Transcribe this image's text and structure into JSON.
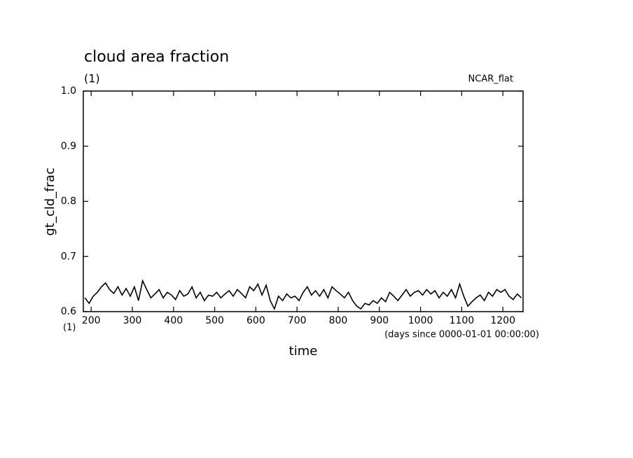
{
  "chart_data": {
    "type": "line",
    "title": "cloud area fraction",
    "subtitle": "(1)",
    "annotation": "NCAR_flat",
    "ylabel": "gt_cld_frac",
    "xlabel": "time",
    "xunits": "(days since 0000-01-01 00:00:00)",
    "xunits_prefix": "(1)",
    "xlim": [
      181,
      1249
    ],
    "ylim": [
      0.6,
      1.0
    ],
    "xticks": [
      200,
      300,
      400,
      500,
      600,
      700,
      800,
      900,
      1000,
      1100,
      1200
    ],
    "yticks": [
      0.6,
      0.7,
      0.8,
      0.9,
      {
        "value": 1,
        "label": "1.0"
      }
    ],
    "x": [
      185,
      195,
      205,
      215,
      225,
      235,
      245,
      255,
      265,
      275,
      285,
      295,
      305,
      315,
      325,
      335,
      345,
      355,
      365,
      375,
      385,
      395,
      405,
      415,
      425,
      435,
      445,
      455,
      465,
      475,
      485,
      495,
      505,
      515,
      525,
      535,
      545,
      555,
      565,
      575,
      585,
      595,
      605,
      615,
      625,
      635,
      645,
      655,
      665,
      675,
      685,
      695,
      705,
      715,
      725,
      735,
      745,
      755,
      765,
      775,
      785,
      795,
      805,
      815,
      825,
      835,
      845,
      855,
      865,
      875,
      885,
      895,
      905,
      915,
      925,
      935,
      945,
      955,
      965,
      975,
      985,
      995,
      1005,
      1015,
      1025,
      1035,
      1045,
      1055,
      1065,
      1075,
      1085,
      1095,
      1105,
      1115,
      1125,
      1135,
      1145,
      1155,
      1165,
      1175,
      1185,
      1195,
      1205,
      1215,
      1225,
      1235,
      1245
    ],
    "series": [
      {
        "color": "#000000",
        "values": [
          0.625,
          0.615,
          0.628,
          0.635,
          0.645,
          0.652,
          0.64,
          0.633,
          0.645,
          0.63,
          0.642,
          0.628,
          0.645,
          0.62,
          0.656,
          0.64,
          0.625,
          0.632,
          0.64,
          0.625,
          0.635,
          0.63,
          0.622,
          0.638,
          0.628,
          0.632,
          0.645,
          0.625,
          0.635,
          0.62,
          0.63,
          0.628,
          0.635,
          0.625,
          0.632,
          0.638,
          0.628,
          0.64,
          0.633,
          0.625,
          0.645,
          0.638,
          0.65,
          0.63,
          0.648,
          0.62,
          0.605,
          0.628,
          0.62,
          0.632,
          0.625,
          0.628,
          0.62,
          0.635,
          0.645,
          0.63,
          0.638,
          0.628,
          0.64,
          0.625,
          0.645,
          0.638,
          0.632,
          0.625,
          0.635,
          0.62,
          0.61,
          0.605,
          0.615,
          0.612,
          0.62,
          0.615,
          0.625,
          0.618,
          0.635,
          0.628,
          0.62,
          0.63,
          0.64,
          0.628,
          0.635,
          0.638,
          0.63,
          0.64,
          0.632,
          0.638,
          0.625,
          0.635,
          0.628,
          0.64,
          0.625,
          0.65,
          0.628,
          0.61,
          0.618,
          0.625,
          0.63,
          0.62,
          0.635,
          0.628,
          0.64,
          0.635,
          0.64,
          0.628,
          0.622,
          0.632,
          0.625
        ]
      }
    ]
  }
}
